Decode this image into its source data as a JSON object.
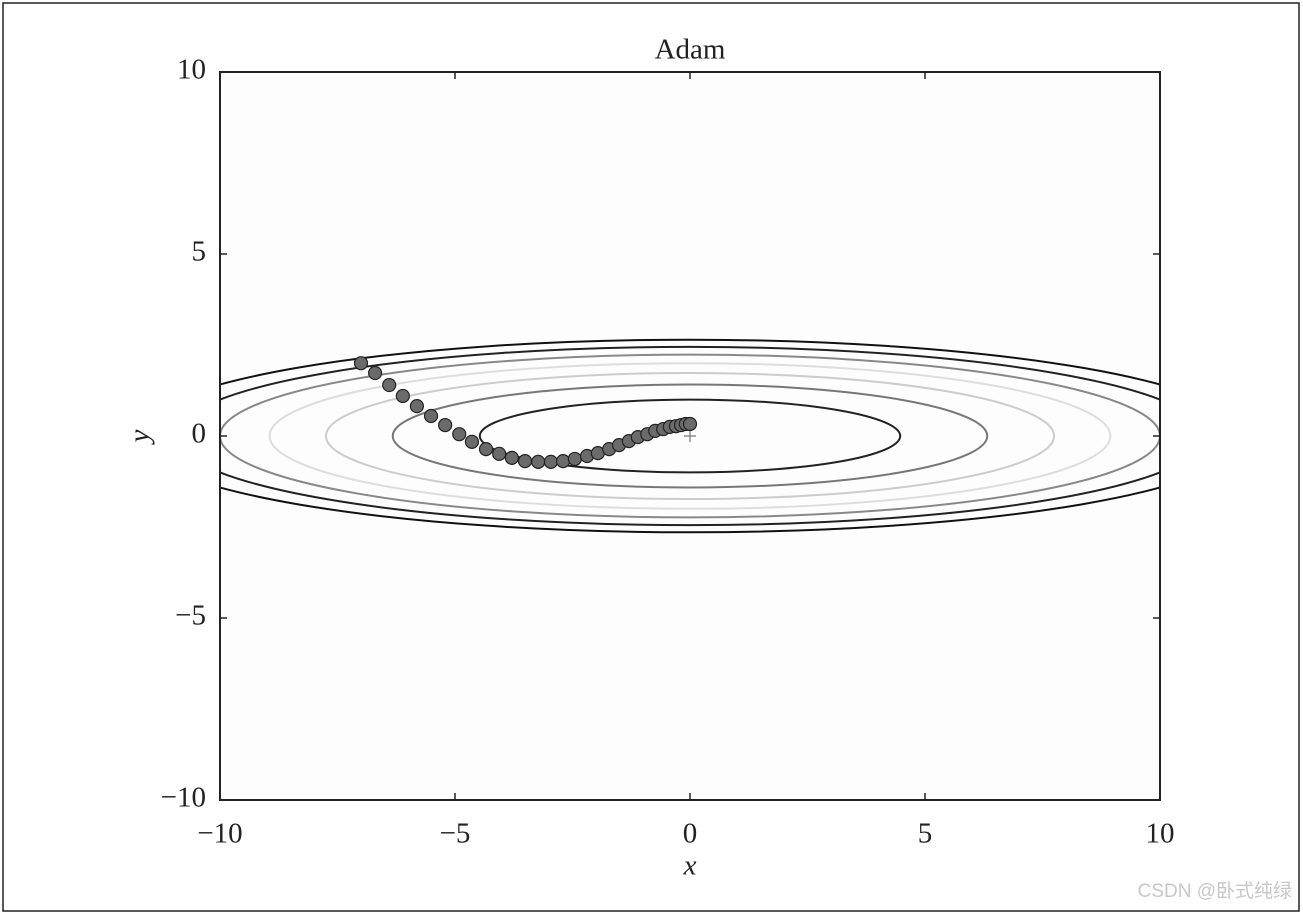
{
  "chart_data": {
    "type": "scatter",
    "title": "Adam",
    "x_label": "x",
    "y_label": "y",
    "x": [
      -7.0,
      -6.7,
      -6.4,
      -6.11,
      -5.81,
      -5.51,
      -5.21,
      -4.91,
      -4.64,
      -4.34,
      -4.06,
      -3.79,
      -3.51,
      -3.23,
      -2.96,
      -2.7,
      -2.45,
      -2.19,
      -1.96,
      -1.72,
      -1.51,
      -1.3,
      -1.11,
      -0.91,
      -0.74,
      -0.57,
      -0.43,
      -0.3,
      -0.19,
      -0.09,
      0.0
    ],
    "y": [
      2.0,
      1.73,
      1.4,
      1.1,
      0.82,
      0.55,
      0.3,
      0.05,
      -0.16,
      -0.36,
      -0.49,
      -0.6,
      -0.69,
      -0.71,
      -0.71,
      -0.69,
      -0.63,
      -0.55,
      -0.47,
      -0.36,
      -0.25,
      -0.14,
      -0.03,
      0.05,
      0.14,
      0.19,
      0.25,
      0.27,
      0.3,
      0.33,
      0.33
    ],
    "color": "#6b6b6b",
    "contour_levels": [
      1,
      2,
      3,
      4,
      5,
      6,
      7
    ],
    "contour_colors": [
      "#222222",
      "#777777",
      "#cccccc",
      "#dddddd",
      "#888888",
      "#222222",
      "#111111"
    ],
    "target": {
      "x": 0,
      "y": 0
    },
    "xlim": [
      -10,
      10
    ],
    "ylim": [
      -10,
      10
    ],
    "xticks": [
      {
        "value": -10,
        "label": "−10"
      },
      {
        "value": -5,
        "label": "−5"
      },
      0,
      5,
      10
    ],
    "yticks": [
      {
        "value": -10,
        "label": "−10"
      },
      {
        "value": -5,
        "label": "−5"
      },
      0,
      5,
      10
    ],
    "grid": false
  },
  "watermark": "CSDN @卧式纯绿"
}
